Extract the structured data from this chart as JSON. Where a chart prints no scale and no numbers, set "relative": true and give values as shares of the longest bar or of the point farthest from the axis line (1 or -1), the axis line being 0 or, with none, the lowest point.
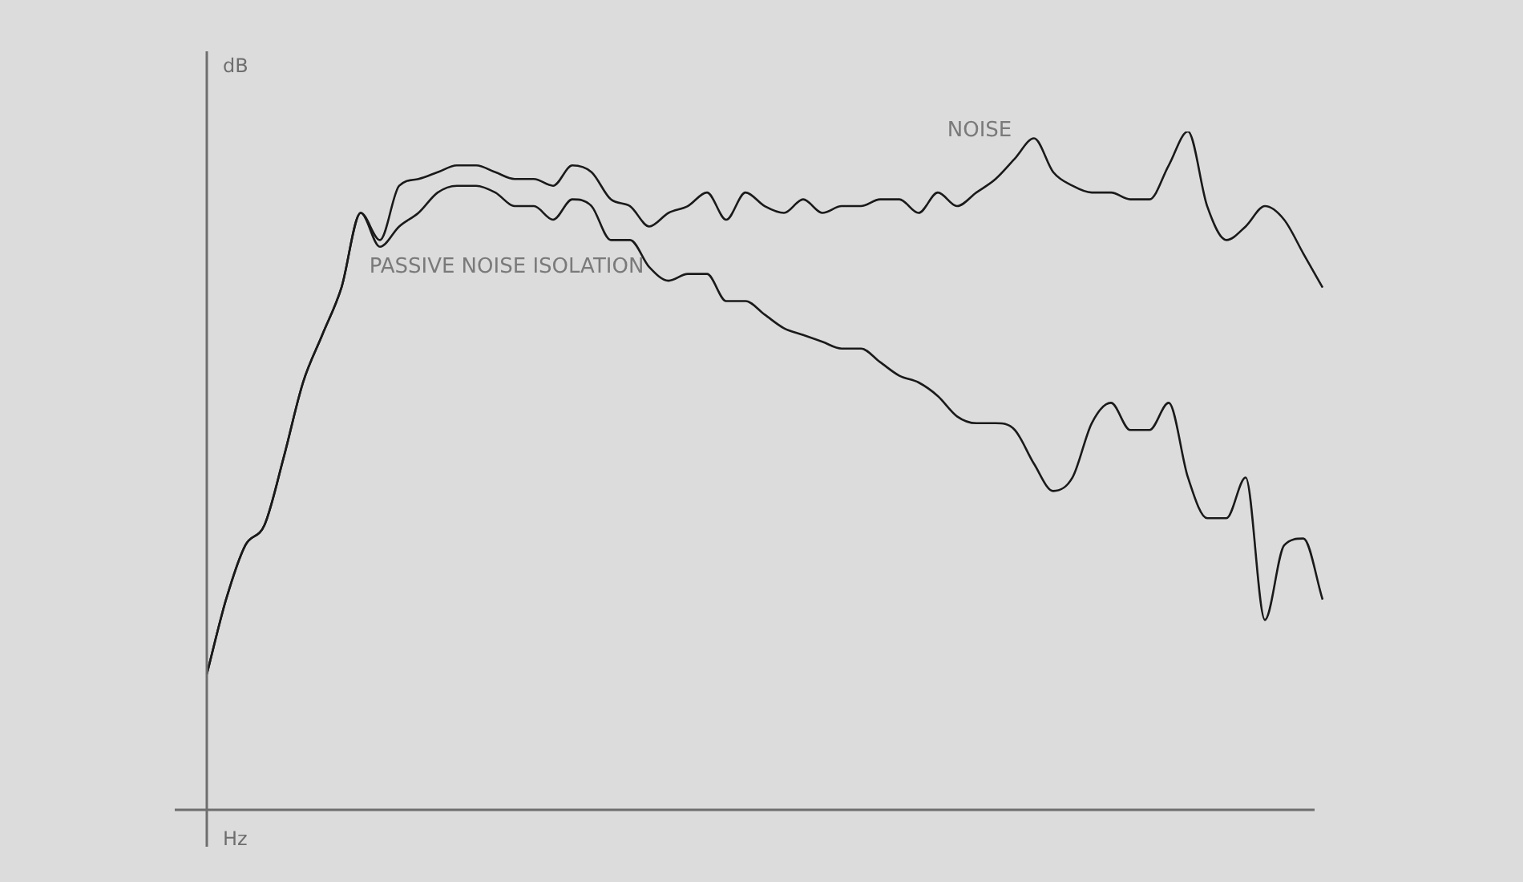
{
  "chart_data": {
    "type": "line",
    "relative": true,
    "xlabel": "Hz",
    "ylabel": "dB",
    "legend": false,
    "marker": "none",
    "categories": [
      null,
      null,
      null,
      null,
      null,
      null,
      null,
      null,
      null,
      null,
      null,
      null,
      null,
      null,
      null,
      null,
      null,
      null,
      null,
      null,
      null,
      null,
      null,
      null,
      null,
      null,
      null,
      null,
      null,
      null,
      null,
      null,
      null,
      null,
      null,
      null,
      null,
      null,
      null,
      null,
      null,
      null,
      null,
      null,
      null,
      null,
      null,
      null,
      null,
      null,
      null,
      null,
      null,
      null,
      null,
      null,
      null,
      null,
      null
    ],
    "series": [
      {
        "name": "NOISE",
        "color": "#1a1a1a",
        "values": [
          0.2,
          0.31,
          0.39,
          0.42,
          0.52,
          0.63,
          0.7,
          0.77,
          0.88,
          0.84,
          0.92,
          0.93,
          0.94,
          0.95,
          0.95,
          0.94,
          0.93,
          0.93,
          0.92,
          0.95,
          0.94,
          0.9,
          0.89,
          0.86,
          0.88,
          0.89,
          0.91,
          0.87,
          0.91,
          0.89,
          0.88,
          0.9,
          0.88,
          0.89,
          0.89,
          0.9,
          0.9,
          0.88,
          0.91,
          0.89,
          0.91,
          0.93,
          0.96,
          0.99,
          0.94,
          0.92,
          0.91,
          0.91,
          0.9,
          0.9,
          0.95,
          1.0,
          0.89,
          0.84,
          0.86,
          0.89,
          0.87,
          0.82,
          0.77
        ]
      },
      {
        "name": "PASSIVE NOISE ISOLATION",
        "color": "#1a1a1a",
        "values": [
          0.2,
          0.31,
          0.39,
          0.42,
          0.52,
          0.63,
          0.7,
          0.77,
          0.88,
          0.83,
          0.86,
          0.88,
          0.91,
          0.92,
          0.92,
          0.91,
          0.89,
          0.89,
          0.87,
          0.9,
          0.89,
          0.84,
          0.84,
          0.8,
          0.78,
          0.79,
          0.79,
          0.75,
          0.75,
          0.73,
          0.71,
          0.7,
          0.69,
          0.68,
          0.68,
          0.66,
          0.64,
          0.63,
          0.61,
          0.58,
          0.57,
          0.57,
          0.56,
          0.51,
          0.47,
          0.49,
          0.57,
          0.6,
          0.56,
          0.56,
          0.6,
          0.49,
          0.43,
          0.43,
          0.49,
          0.28,
          0.39,
          0.4,
          0.31
        ]
      }
    ]
  }
}
